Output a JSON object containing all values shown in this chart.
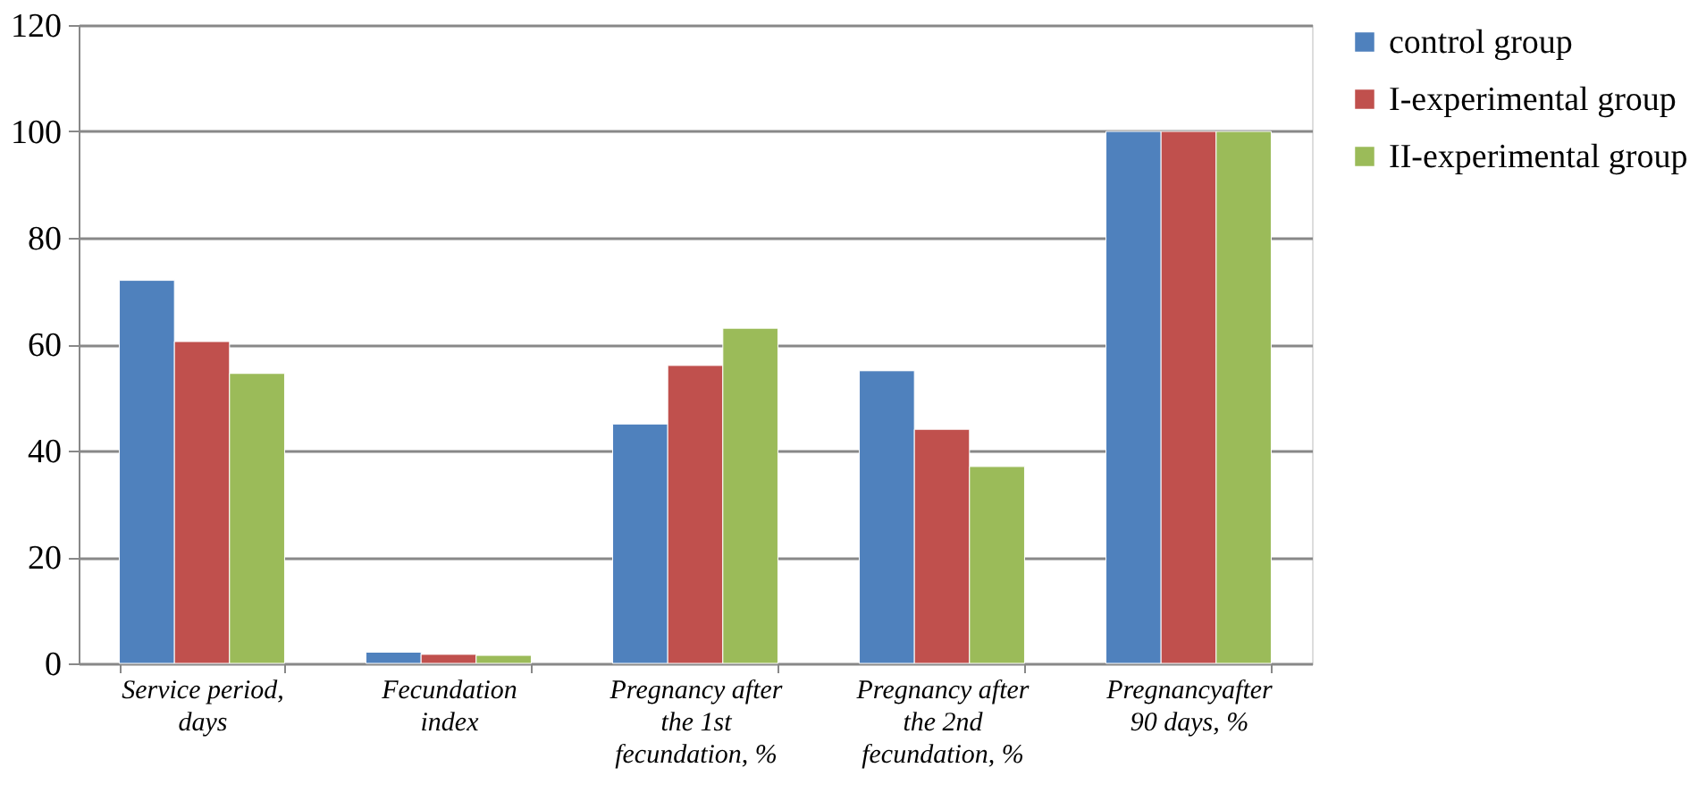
{
  "chart_data": {
    "type": "bar",
    "categories": [
      "Service period, days",
      "Fecundation index",
      "Pregnancy after the 1st fecundation, %",
      "Pregnancy after the 2nd fecundation, %",
      "Pregnancyafter 90 days, %"
    ],
    "series": [
      {
        "name": "control group",
        "color": "#4f81bd",
        "values": [
          72,
          2.1,
          45,
          55,
          100
        ]
      },
      {
        "name": "I-experimental group",
        "color": "#c0504d",
        "values": [
          60.5,
          1.7,
          56,
          44,
          100
        ]
      },
      {
        "name": "II-experimental group",
        "color": "#9bbb59",
        "values": [
          54.5,
          1.5,
          63,
          37,
          100
        ]
      }
    ],
    "ylim": [
      0,
      120
    ],
    "yticks": [
      0,
      20,
      40,
      60,
      80,
      100,
      120
    ],
    "grid": "y",
    "legend": "right"
  }
}
